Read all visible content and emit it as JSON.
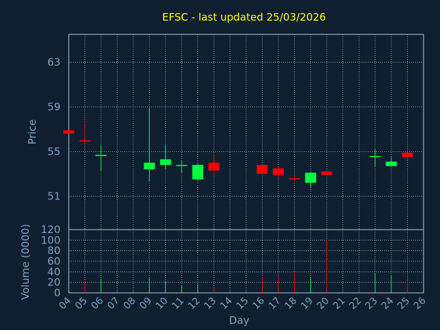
{
  "chart_data": [
    {
      "type": "candlestick",
      "title": "EFSC - last updated 25/03/2026",
      "ylabel": "Price",
      "ylim": [
        48,
        65.5
      ],
      "y_ticks": [
        51,
        55,
        59,
        63
      ],
      "grid": true,
      "categories": [
        "04",
        "05",
        "06",
        "07",
        "08",
        "09",
        "10",
        "11",
        "12",
        "13",
        "14",
        "15",
        "16",
        "17",
        "18",
        "19",
        "20",
        "21",
        "22",
        "23",
        "24",
        "25",
        "26"
      ],
      "candles": [
        {
          "day": "04",
          "open": 56.9,
          "high": 56.9,
          "low": 56.6,
          "close": 56.6
        },
        {
          "day": "05",
          "open": 56.0,
          "high": 57.6,
          "low": 55.6,
          "close": 55.9
        },
        {
          "day": "06",
          "open": 54.6,
          "high": 55.6,
          "low": 53.3,
          "close": 54.7
        },
        {
          "day": "09",
          "open": 53.4,
          "high": 58.9,
          "low": 52.3,
          "close": 54.0
        },
        {
          "day": "10",
          "open": 53.8,
          "high": 55.6,
          "low": 53.4,
          "close": 54.3
        },
        {
          "day": "11",
          "open": 53.7,
          "high": 54.2,
          "low": 53.1,
          "close": 53.8
        },
        {
          "day": "12",
          "open": 52.5,
          "high": 53.9,
          "low": 52.4,
          "close": 53.8
        },
        {
          "day": "13",
          "open": 54.0,
          "high": 54.8,
          "low": 52.8,
          "close": 53.3
        },
        {
          "day": "16",
          "open": 53.8,
          "high": 53.8,
          "low": 53.0,
          "close": 53.0
        },
        {
          "day": "17",
          "open": 53.5,
          "high": 53.6,
          "low": 52.6,
          "close": 52.9
        },
        {
          "day": "18",
          "open": 52.6,
          "high": 52.8,
          "low": 52.3,
          "close": 52.5
        },
        {
          "day": "19",
          "open": 52.2,
          "high": 53.2,
          "low": 51.8,
          "close": 53.1
        },
        {
          "day": "20",
          "open": 53.2,
          "high": 53.2,
          "low": 52.9,
          "close": 52.9
        },
        {
          "day": "23",
          "open": 54.5,
          "high": 55.2,
          "low": 53.6,
          "close": 54.6
        },
        {
          "day": "24",
          "open": 53.7,
          "high": 54.5,
          "low": 53.6,
          "close": 54.1
        },
        {
          "day": "25",
          "open": 54.9,
          "high": 54.9,
          "low": 54.2,
          "close": 54.5
        }
      ],
      "colors": {
        "up": "#00ff40",
        "down": "#ff0000"
      }
    },
    {
      "type": "bar",
      "ylabel": "Volume (0000)",
      "xlabel": "Day",
      "ylim": [
        0,
        120
      ],
      "y_ticks": [
        0,
        20,
        40,
        60,
        80,
        100,
        120
      ],
      "categories": [
        "04",
        "05",
        "06",
        "07",
        "08",
        "09",
        "10",
        "11",
        "12",
        "13",
        "14",
        "15",
        "16",
        "17",
        "18",
        "19",
        "20",
        "21",
        "22",
        "23",
        "24",
        "25",
        "26"
      ],
      "bars": [
        {
          "day": "05",
          "value": 22,
          "direction": "down"
        },
        {
          "day": "06",
          "value": 27,
          "direction": "up"
        },
        {
          "day": "09",
          "value": 28,
          "direction": "up"
        },
        {
          "day": "10",
          "value": 23,
          "direction": "up"
        },
        {
          "day": "11",
          "value": 14,
          "direction": "up"
        },
        {
          "day": "12",
          "value": 16,
          "direction": "up"
        },
        {
          "day": "13",
          "value": 12,
          "direction": "down"
        },
        {
          "day": "16",
          "value": 30,
          "direction": "down"
        },
        {
          "day": "17",
          "value": 32,
          "direction": "down"
        },
        {
          "day": "18",
          "value": 38,
          "direction": "down"
        },
        {
          "day": "19",
          "value": 28,
          "direction": "up"
        },
        {
          "day": "20",
          "value": 102,
          "direction": "down"
        },
        {
          "day": "23",
          "value": 37,
          "direction": "up"
        },
        {
          "day": "24",
          "value": 32,
          "direction": "up"
        },
        {
          "day": "25",
          "value": 35,
          "direction": "down"
        }
      ]
    }
  ],
  "colors": {
    "background": "#0f1f30",
    "title": "#ffff00",
    "axis_text": "#80a0c0",
    "frame": "#c0c8d8",
    "grid": "#c0c8d8"
  }
}
